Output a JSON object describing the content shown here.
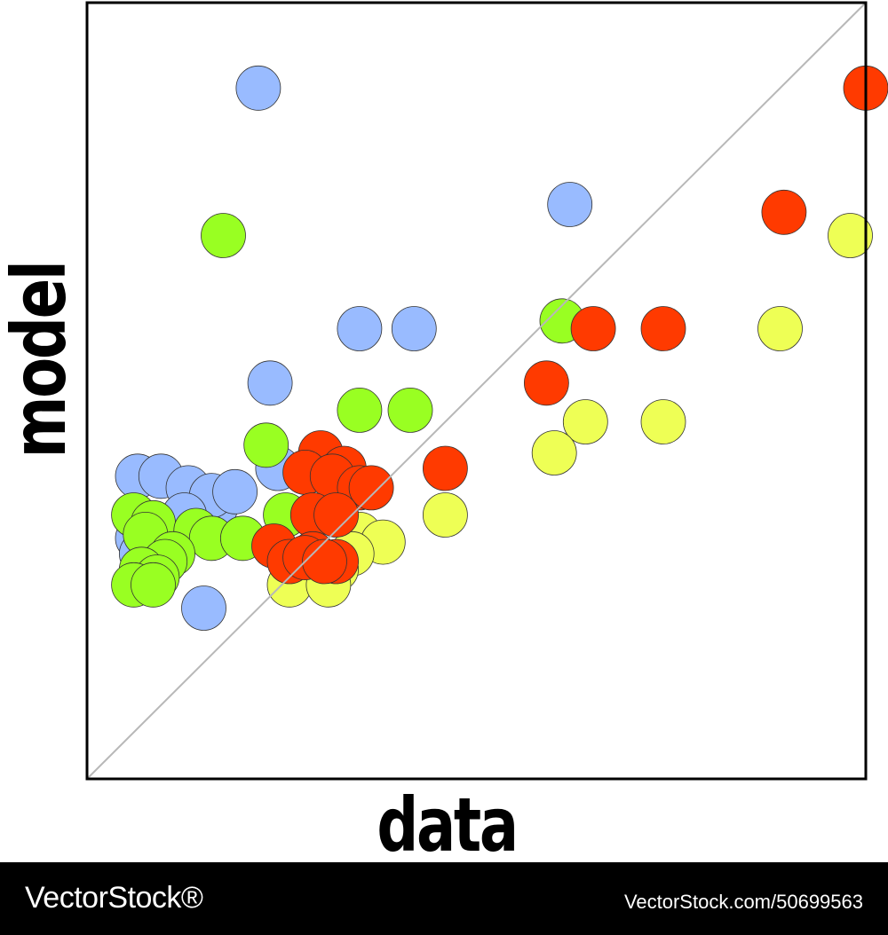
{
  "chart_data": {
    "type": "scatter",
    "xlabel": "data",
    "ylabel": "model",
    "xlim": [
      0,
      100
    ],
    "ylim": [
      0,
      100
    ],
    "grid": false,
    "reference_line": "y = x",
    "series": [
      {
        "color": "#99bbff",
        "points": [
          [
            22,
            89
          ],
          [
            62,
            74
          ],
          [
            35,
            58
          ],
          [
            42,
            58
          ],
          [
            23.5,
            51
          ],
          [
            16.5,
            35
          ],
          [
            6.5,
            39
          ],
          [
            9.5,
            39
          ],
          [
            13,
            37.5
          ],
          [
            16,
            36.5
          ],
          [
            19,
            37
          ],
          [
            24.5,
            40
          ],
          [
            12.5,
            34
          ],
          [
            6.5,
            31
          ],
          [
            7,
            29
          ],
          [
            9.5,
            28
          ],
          [
            15,
            22
          ]
        ]
      },
      {
        "color": "#99ff22",
        "points": [
          [
            17.5,
            70
          ],
          [
            61,
            59
          ],
          [
            35,
            47.5
          ],
          [
            41.5,
            47.5
          ],
          [
            23,
            43
          ],
          [
            25.5,
            34
          ],
          [
            6,
            34
          ],
          [
            8.5,
            33
          ],
          [
            7.5,
            31.5
          ],
          [
            14,
            32
          ],
          [
            16,
            31
          ],
          [
            20,
            31
          ],
          [
            11,
            29
          ],
          [
            10,
            28
          ],
          [
            7,
            27
          ],
          [
            9,
            26
          ],
          [
            6,
            25
          ],
          [
            8.5,
            25
          ]
        ]
      },
      {
        "color": "#ff3a00",
        "points": [
          [
            100,
            89
          ],
          [
            89.5,
            73
          ],
          [
            65,
            58
          ],
          [
            74,
            58
          ],
          [
            59,
            51
          ],
          [
            46,
            40
          ],
          [
            30,
            42
          ],
          [
            33,
            40
          ],
          [
            28,
            39.5
          ],
          [
            31.5,
            39
          ],
          [
            35,
            37.5
          ],
          [
            36.5,
            37.5
          ],
          [
            29,
            34
          ],
          [
            32,
            34
          ],
          [
            24,
            30
          ],
          [
            29,
            29
          ],
          [
            26,
            28
          ],
          [
            32,
            28
          ],
          [
            28,
            28.5
          ],
          [
            30.5,
            28
          ]
        ]
      },
      {
        "color": "#eeff55",
        "points": [
          [
            98,
            70
          ],
          [
            89,
            58
          ],
          [
            64,
            46
          ],
          [
            74,
            46
          ],
          [
            60,
            42
          ],
          [
            46,
            34
          ],
          [
            35,
            31.5
          ],
          [
            38,
            30.5
          ],
          [
            34,
            29
          ],
          [
            32,
            27
          ],
          [
            29.5,
            26.5
          ],
          [
            26,
            25
          ],
          [
            31,
            25
          ]
        ]
      }
    ]
  },
  "footer": {
    "brand": "VectorStock®",
    "reference": "VectorStock.com/50699563"
  }
}
